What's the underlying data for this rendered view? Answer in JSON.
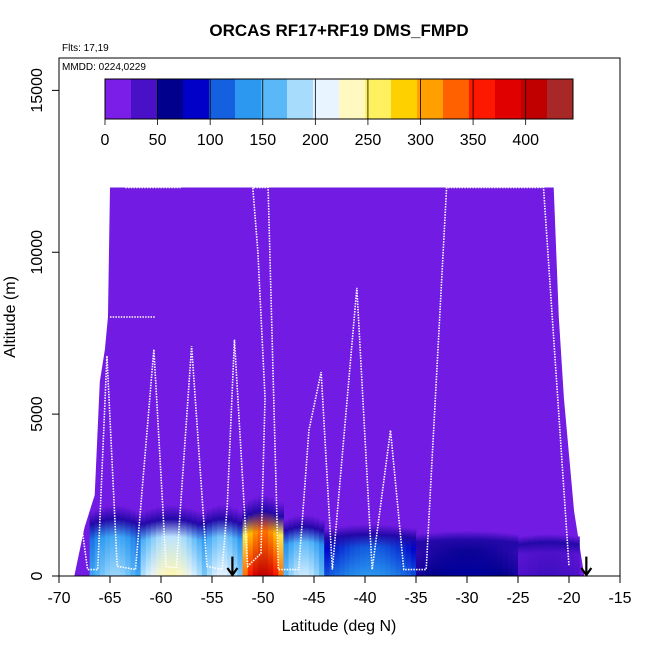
{
  "chart_data": {
    "type": "heatmap",
    "title": "ORCAS RF17+RF19 DMS_FMPD",
    "notes": [
      "Flts: 17,19",
      "MMDD: 0224,0229"
    ],
    "xlabel": "Latitude (deg N)",
    "ylabel": "Altitude (m)",
    "xlim": [
      -70,
      -15
    ],
    "ylim": [
      0,
      16000
    ],
    "x_ticks": [
      "-70",
      "-65",
      "-60",
      "-55",
      "-50",
      "-45",
      "-40",
      "-35",
      "-30",
      "-25",
      "-20",
      "-15"
    ],
    "y_ticks": [
      "0",
      "5000",
      "10000",
      "15000"
    ],
    "colorbar": {
      "ticks": [
        "0",
        "50",
        "100",
        "150",
        "200",
        "250",
        "300",
        "350",
        "400"
      ],
      "range": [
        0,
        445
      ],
      "colors": [
        "#7b1ee8",
        "#4a10c8",
        "#00008c",
        "#0000c8",
        "#1460e0",
        "#2c98f0",
        "#5ab8f8",
        "#a8dcfc",
        "#e8f4ff",
        "#fff8c0",
        "#fff060",
        "#ffd000",
        "#ffa000",
        "#ff6000",
        "#ff1800",
        "#e00000",
        "#c00000",
        "#a82828"
      ]
    },
    "arrows_at_latitude": [
      -53,
      -18.3
    ],
    "field": {
      "background_value": 5,
      "coverage": {
        "north_edge_lat": -18.5,
        "south_edge_top_profile": [
          [
            -68.5,
            0
          ],
          [
            -67.5,
            1500
          ],
          [
            -66.5,
            2500
          ],
          [
            -66,
            6000
          ],
          [
            -65.5,
            7000
          ],
          [
            -65.2,
            8000
          ],
          [
            -65,
            12000
          ]
        ],
        "north_edge_top_profile": [
          [
            -18.5,
            0
          ],
          [
            -19.5,
            2000
          ],
          [
            -20.5,
            5500
          ],
          [
            -21,
            8000
          ],
          [
            -21.5,
            12000
          ]
        ],
        "top_altitude": 12000
      },
      "boundary_layer": [
        {
          "lat_from": -67,
          "lat_to": -62,
          "alt_from": 0,
          "alt_to": 1500,
          "value": 180
        },
        {
          "lat_from": -62,
          "lat_to": -56,
          "alt_from": 0,
          "alt_to": 1500,
          "value": 240
        },
        {
          "lat_from": -56,
          "lat_to": -52,
          "alt_from": 0,
          "alt_to": 1500,
          "value": 210
        },
        {
          "lat_from": -52,
          "lat_to": -48,
          "alt_from": 0,
          "alt_to": 1800,
          "value": 420
        },
        {
          "lat_from": -48,
          "lat_to": -44,
          "alt_from": 0,
          "alt_to": 1200,
          "value": 200
        },
        {
          "lat_from": -44,
          "lat_to": -35,
          "alt_from": 0,
          "alt_to": 900,
          "value": 130
        },
        {
          "lat_from": -35,
          "lat_to": -25,
          "alt_from": 0,
          "alt_to": 700,
          "value": 60
        },
        {
          "lat_from": -25,
          "lat_to": -19,
          "alt_from": 0,
          "alt_to": 600,
          "value": 30
        }
      ]
    },
    "flight_track": [
      [
        -68.5,
        200
      ],
      [
        -67.8,
        1600
      ],
      [
        -67.2,
        200
      ],
      [
        -66.2,
        200
      ],
      [
        -65.3,
        6800
      ],
      [
        -64.3,
        300
      ],
      [
        -62.5,
        200
      ],
      [
        -60.7,
        7000
      ],
      [
        -59.5,
        300
      ],
      [
        -58.5,
        250
      ],
      [
        -57,
        7100
      ],
      [
        -55.5,
        300
      ],
      [
        -54,
        200
      ],
      [
        -53.5,
        2200
      ],
      [
        -52.8,
        7300
      ],
      [
        -51.5,
        300
      ],
      [
        -50.2,
        700
      ],
      [
        -49.8,
        5500
      ],
      [
        -50.5,
        10000
      ],
      [
        -51,
        12000
      ],
      [
        -49.5,
        12000
      ],
      [
        -48.5,
        200
      ],
      [
        -46.5,
        200
      ],
      [
        -45.5,
        4500
      ],
      [
        -44.3,
        6300
      ],
      [
        -43.2,
        200
      ],
      [
        -40.8,
        8900
      ],
      [
        -39.3,
        200
      ],
      [
        -37.5,
        4500
      ],
      [
        -36.2,
        200
      ],
      [
        -34,
        200
      ],
      [
        -32,
        12000
      ],
      [
        -28.5,
        12000
      ],
      [
        -22.5,
        12000
      ],
      [
        -21,
        5000
      ],
      [
        -20,
        300
      ]
    ],
    "track_segments": [
      {
        "from": [
          -65,
          8000
        ],
        "to": [
          -60.5,
          8000
        ]
      },
      {
        "from": [
          -63.5,
          12000
        ],
        "to": [
          -58,
          12000
        ]
      }
    ]
  }
}
